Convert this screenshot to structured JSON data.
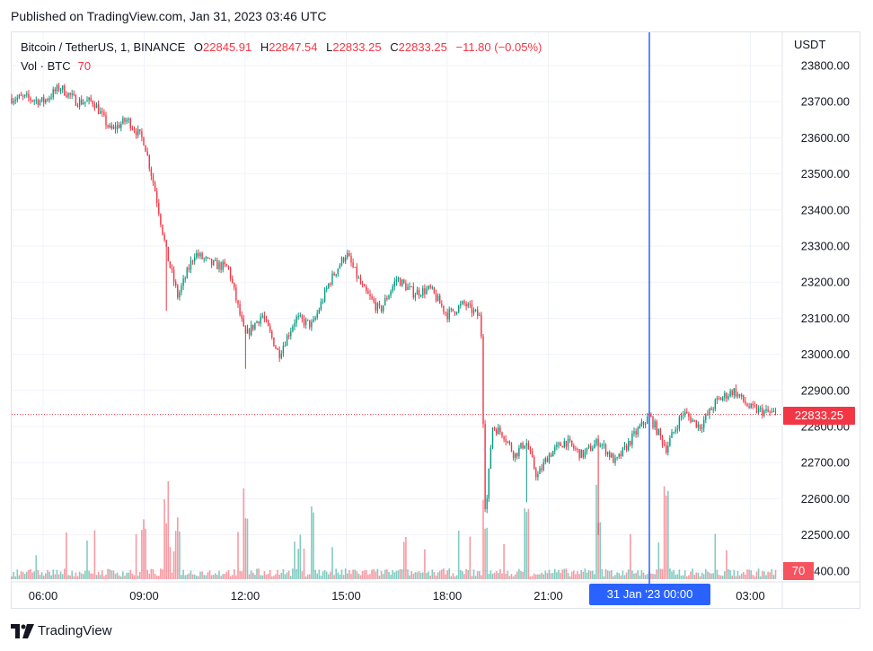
{
  "published": "Published on TradingView.com, Jan 31, 2023 03:46 UTC",
  "legend": {
    "symbol": "Bitcoin / TetherUS, 1, BINANCE",
    "o_label": "O",
    "o_value": "22845.91",
    "h_label": "H",
    "h_value": "22847.54",
    "l_label": "L",
    "l_value": "22833.25",
    "c_label": "C",
    "c_value": "22833.25",
    "change": "−11.80 (−0.05%)"
  },
  "volume_legend": {
    "label": "Vol · BTC",
    "value": "70"
  },
  "axis_unit": "USDT",
  "last_price_tag": "22833.25",
  "volume_tag": "70",
  "crosshair_label": "31 Jan '23   00:00",
  "footer_brand": "TradingView",
  "colors": {
    "up": "#089981",
    "down": "#f23645",
    "crosshair": "#2962ff",
    "grid": "#f0f3fa"
  },
  "chart_data": {
    "type": "candlestick",
    "ylim": [
      22420,
      23840
    ],
    "y_ticks": [
      "23800.00",
      "23700.00",
      "23600.00",
      "23500.00",
      "23400.00",
      "23300.00",
      "23200.00",
      "23100.00",
      "23000.00",
      "22900.00",
      "22800.00",
      "22700.00",
      "22600.00",
      "22500.00",
      "22400.00"
    ],
    "x_ticks": [
      "06:00",
      "09:00",
      "12:00",
      "15:00",
      "18:00",
      "21:00",
      "03:00"
    ],
    "last_price": 22833.25,
    "crosshair_time": "00:00",
    "series": [
      {
        "name": "Bitcoin / TetherUS",
        "points": [
          {
            "t": "05:30",
            "v": 23710
          },
          {
            "t": "06:00",
            "v": 23700
          },
          {
            "t": "06:30",
            "v": 23740
          },
          {
            "t": "07:00",
            "v": 23700
          },
          {
            "t": "07:30",
            "v": 23700
          },
          {
            "t": "08:00",
            "v": 23620
          },
          {
            "t": "08:30",
            "v": 23650
          },
          {
            "t": "09:00",
            "v": 23590
          },
          {
            "t": "09:20",
            "v": 23450
          },
          {
            "t": "09:40",
            "v": 23280
          },
          {
            "t": "10:00",
            "v": 23160
          },
          {
            "t": "10:30",
            "v": 23280
          },
          {
            "t": "11:00",
            "v": 23250
          },
          {
            "t": "11:30",
            "v": 23240
          },
          {
            "t": "12:00",
            "v": 23050
          },
          {
            "t": "12:30",
            "v": 23110
          },
          {
            "t": "13:00",
            "v": 23000
          },
          {
            "t": "13:30",
            "v": 23100
          },
          {
            "t": "14:00",
            "v": 23080
          },
          {
            "t": "14:30",
            "v": 23200
          },
          {
            "t": "15:00",
            "v": 23280
          },
          {
            "t": "15:30",
            "v": 23180
          },
          {
            "t": "16:00",
            "v": 23120
          },
          {
            "t": "16:30",
            "v": 23210
          },
          {
            "t": "17:00",
            "v": 23170
          },
          {
            "t": "17:30",
            "v": 23180
          },
          {
            "t": "18:00",
            "v": 23110
          },
          {
            "t": "18:30",
            "v": 23140
          },
          {
            "t": "19:00",
            "v": 23100
          },
          {
            "t": "19:08",
            "v": 22540
          },
          {
            "t": "19:20",
            "v": 22800
          },
          {
            "t": "19:40",
            "v": 22780
          },
          {
            "t": "20:00",
            "v": 22720
          },
          {
            "t": "20:20",
            "v": 22760
          },
          {
            "t": "20:40",
            "v": 22660
          },
          {
            "t": "21:00",
            "v": 22720
          },
          {
            "t": "21:30",
            "v": 22760
          },
          {
            "t": "22:00",
            "v": 22720
          },
          {
            "t": "22:30",
            "v": 22760
          },
          {
            "t": "23:00",
            "v": 22700
          },
          {
            "t": "23:30",
            "v": 22770
          },
          {
            "t": "00:00",
            "v": 22830
          },
          {
            "t": "00:30",
            "v": 22740
          },
          {
            "t": "01:00",
            "v": 22840
          },
          {
            "t": "01:30",
            "v": 22800
          },
          {
            "t": "02:00",
            "v": 22870
          },
          {
            "t": "02:30",
            "v": 22900
          },
          {
            "t": "03:00",
            "v": 22850
          },
          {
            "t": "03:46",
            "v": 22833
          }
        ]
      }
    ],
    "volume_series": {
      "name": "Vol · BTC",
      "spikes": [
        {
          "t": "09:00",
          "v": "high"
        },
        {
          "t": "09:40",
          "v": "high"
        },
        {
          "t": "10:00",
          "v": "high"
        },
        {
          "t": "12:00",
          "v": "high"
        },
        {
          "t": "14:00",
          "v": "high"
        },
        {
          "t": "19:08",
          "v": "high"
        },
        {
          "t": "20:20",
          "v": "high"
        },
        {
          "t": "22:30",
          "v": "high"
        },
        {
          "t": "00:30",
          "v": "high"
        }
      ]
    }
  }
}
